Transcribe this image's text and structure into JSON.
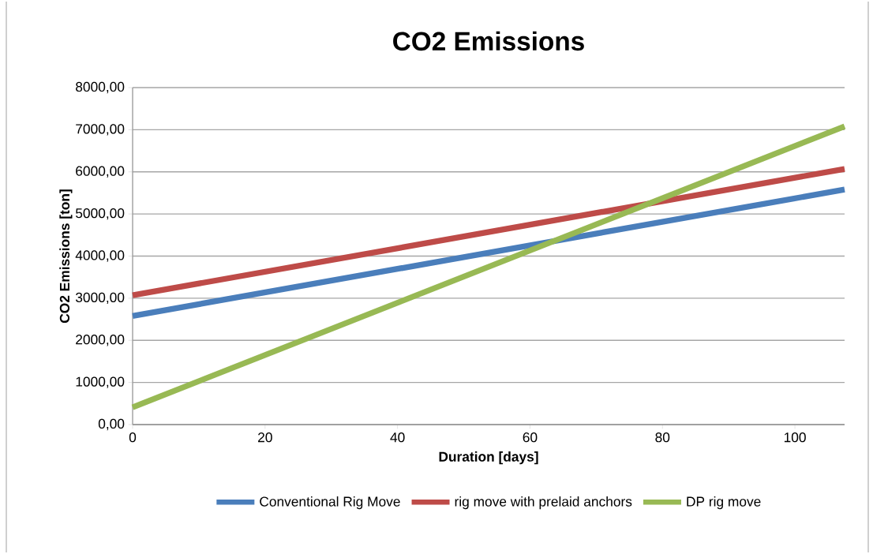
{
  "chart_data": {
    "type": "line",
    "title": "CO2 Emissions",
    "xlabel": "Duration [days]",
    "ylabel": "CO2 Emissions [ton]",
    "x": [
      0,
      107.5
    ],
    "series": [
      {
        "name": "Conventional Rig Move",
        "color": "#4a7ebb",
        "values": [
          2580,
          5580
        ]
      },
      {
        "name": "rig move with prelaid anchors",
        "color": "#be4b48",
        "values": [
          3070,
          6070
        ]
      },
      {
        "name": "DP rig move",
        "color": "#98b954",
        "values": [
          410,
          7080
        ]
      }
    ],
    "xlim": [
      0,
      107.5
    ],
    "xticks": [
      0,
      20,
      40,
      60,
      80,
      100
    ],
    "ylim": [
      0,
      8000
    ],
    "yticks": [
      {
        "value": 0,
        "label": "0,00"
      },
      {
        "value": 1000,
        "label": "1000,00"
      },
      {
        "value": 2000,
        "label": "2000,00"
      },
      {
        "value": 3000,
        "label": "3000,00"
      },
      {
        "value": 4000,
        "label": "4000,00"
      },
      {
        "value": 5000,
        "label": "5000,00"
      },
      {
        "value": 6000,
        "label": "6000,00"
      },
      {
        "value": 7000,
        "label": "7000,00"
      },
      {
        "value": 8000,
        "label": "8000,00"
      }
    ],
    "grid": "y",
    "legend": "bottom",
    "marker": "none",
    "line_style": "solid"
  }
}
